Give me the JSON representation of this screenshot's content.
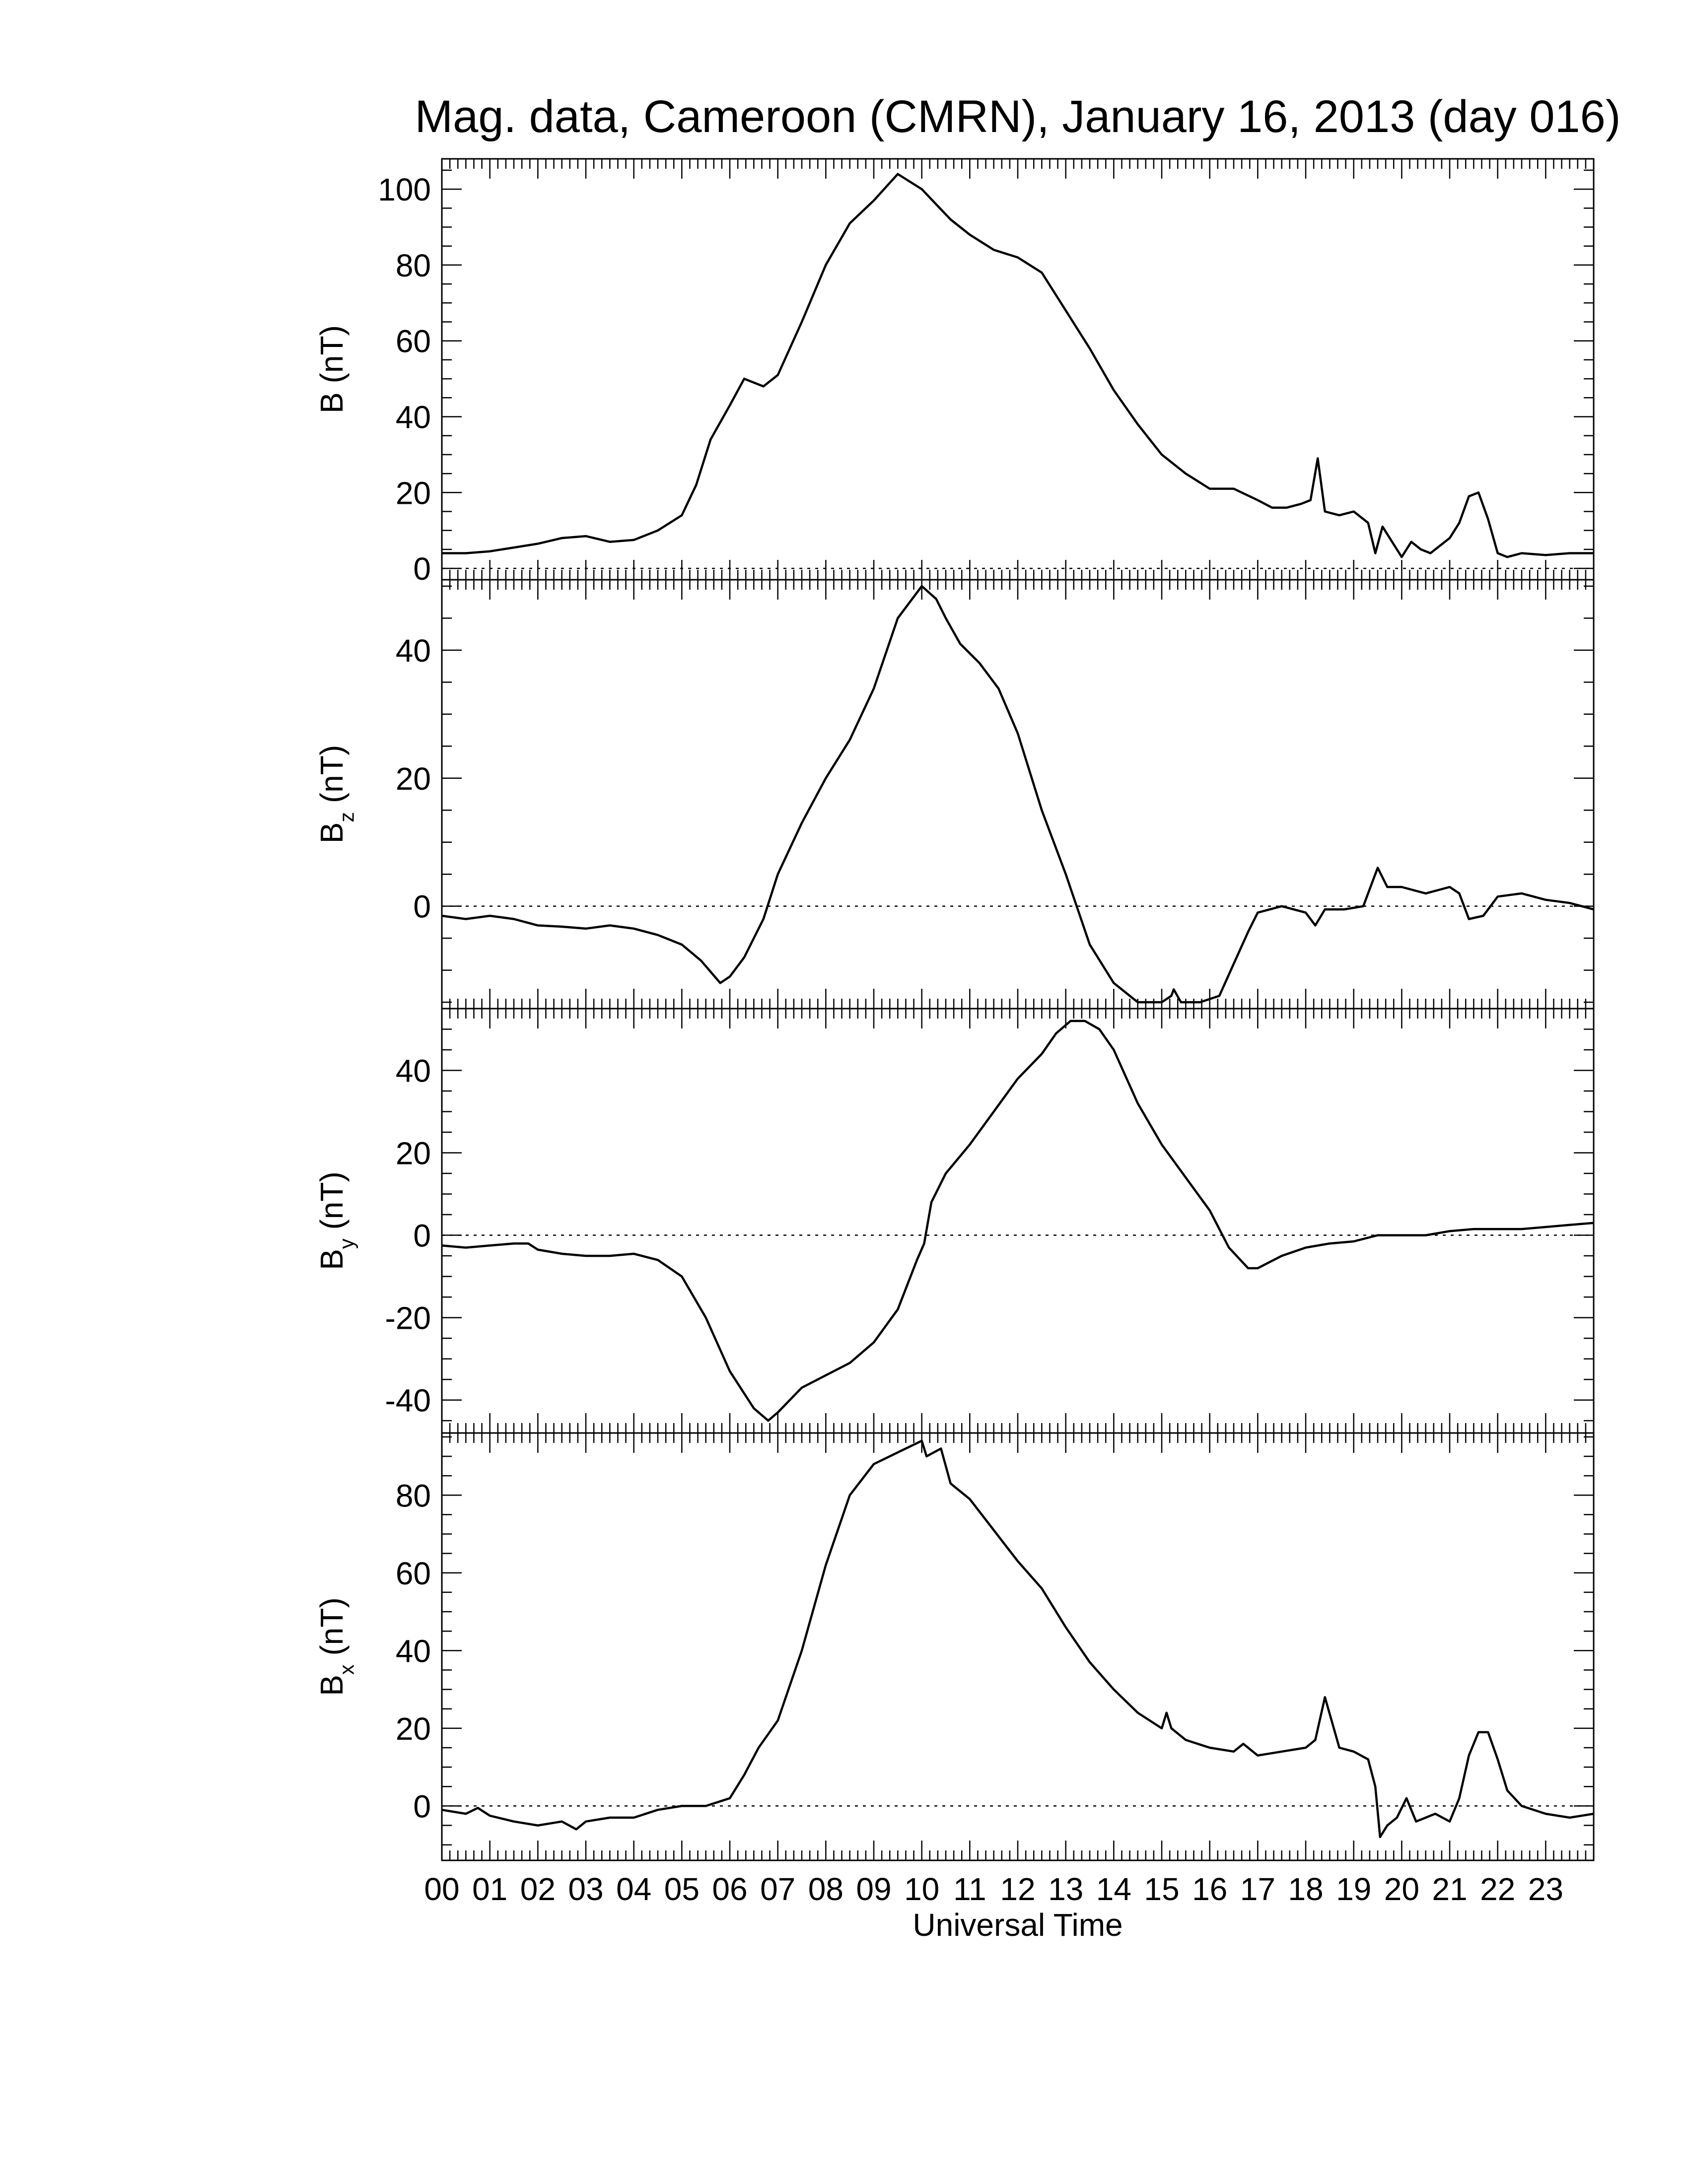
{
  "chart_data": {
    "title": "Mag. data, Cameroon (CMRN), January 16, 2013 (day 016)",
    "xlabel": "Universal Time",
    "x_unit": "hour (UT)",
    "xlim": [
      0,
      24
    ],
    "x_ticks": [
      0,
      1,
      2,
      3,
      4,
      5,
      6,
      7,
      8,
      9,
      10,
      11,
      12,
      13,
      14,
      15,
      16,
      17,
      18,
      19,
      20,
      21,
      22,
      23
    ],
    "x_tick_labels": [
      "00",
      "01",
      "02",
      "03",
      "04",
      "05",
      "06",
      "07",
      "08",
      "09",
      "10",
      "11",
      "12",
      "13",
      "14",
      "15",
      "16",
      "17",
      "18",
      "19",
      "20",
      "21",
      "22",
      "23"
    ],
    "panels": [
      {
        "type": "line",
        "ylabel_main": "B",
        "ylabel_sub": "",
        "ylabel_unit": " (nT)",
        "ylim": [
          -3,
          108
        ],
        "yticks": [
          0,
          20,
          40,
          60,
          80,
          100
        ],
        "ytick_labels": [
          "0",
          "20",
          "40",
          "60",
          "80",
          "100"
        ],
        "zero_line": true,
        "series": [
          {
            "x": [
              0,
              0.5,
              1,
              1.5,
              2,
              2.5,
              3,
              3.5,
              4,
              4.5,
              5,
              5.3,
              5.6,
              6,
              6.3,
              6.7,
              7,
              7.5,
              8,
              8.5,
              9,
              9.5,
              10,
              10.3,
              10.6,
              11,
              11.5,
              12,
              12.5,
              13,
              13.5,
              14,
              14.5,
              15,
              15.5,
              16,
              16.5,
              17,
              17.3,
              17.6,
              17.9,
              18.1,
              18.25,
              18.4,
              18.7,
              19,
              19.3,
              19.45,
              19.6,
              19.8,
              20,
              20.2,
              20.4,
              20.6,
              20.8,
              21,
              21.2,
              21.4,
              21.6,
              21.8,
              22,
              22.2,
              22.5,
              23,
              23.5,
              24
            ],
            "y": [
              4,
              4,
              4.5,
              5.5,
              6.5,
              8,
              8.5,
              7,
              7.5,
              10,
              14,
              22,
              34,
              43,
              50,
              48,
              51,
              65,
              80,
              91,
              97,
              104,
              100,
              96,
              92,
              88,
              84,
              82,
              78,
              68,
              58,
              47,
              38,
              30,
              25,
              21,
              21,
              18,
              16,
              16,
              17,
              18,
              29,
              15,
              14,
              15,
              12,
              4,
              11,
              7,
              3,
              7,
              5,
              4,
              6,
              8,
              12,
              19,
              20,
              13,
              4,
              3,
              4,
              3.5,
              4,
              4
            ]
          }
        ]
      },
      {
        "type": "line",
        "ylabel_main": "B",
        "ylabel_sub": "z",
        "ylabel_unit": " (nT)",
        "ylim": [
          -16,
          51
        ],
        "yticks": [
          0,
          20,
          40
        ],
        "ytick_labels": [
          "0",
          "20",
          "40"
        ],
        "zero_line": true,
        "series": [
          {
            "x": [
              0,
              0.5,
              1,
              1.5,
              2,
              2.5,
              3,
              3.5,
              4,
              4.5,
              5,
              5.4,
              5.8,
              6,
              6.3,
              6.7,
              7,
              7.5,
              8,
              8.5,
              9,
              9.5,
              10,
              10.3,
              10.5,
              10.8,
              11.2,
              11.6,
              12,
              12.5,
              13,
              13.5,
              14,
              14.5,
              15,
              15.2,
              15.25,
              15.4,
              15.8,
              16.2,
              16.5,
              16.8,
              17,
              17.5,
              18,
              18.2,
              18.4,
              18.8,
              19.2,
              19.4,
              19.5,
              19.7,
              20,
              20.5,
              21,
              21.2,
              21.4,
              21.7,
              22,
              22.5,
              23,
              23.5,
              24
            ],
            "y": [
              -1.5,
              -2,
              -1.5,
              -2,
              -3,
              -3.2,
              -3.5,
              -3,
              -3.5,
              -4.5,
              -6,
              -8.5,
              -12,
              -11,
              -8,
              -2,
              5,
              13,
              20,
              26,
              34,
              45,
              50,
              48,
              45,
              41,
              38,
              34,
              27,
              15,
              5,
              -6,
              -12,
              -15,
              -15,
              -14,
              -13,
              -15,
              -15,
              -14,
              -9,
              -4,
              -1,
              0,
              -1,
              -3,
              -0.5,
              -0.5,
              0,
              4,
              6,
              3,
              3,
              2,
              3,
              2,
              -2,
              -1.5,
              1.5,
              2,
              1,
              0.5,
              -0.5
            ]
          }
        ]
      },
      {
        "type": "line",
        "ylabel_main": "B",
        "ylabel_sub": "y",
        "ylabel_unit": " (nT)",
        "ylim": [
          -48,
          55
        ],
        "yticks": [
          -40,
          -20,
          0,
          20,
          40
        ],
        "ytick_labels": [
          "-40",
          "-20",
          "0",
          "20",
          "40"
        ],
        "zero_line": true,
        "series": [
          {
            "x": [
              0,
              0.5,
              1,
              1.5,
              1.8,
              2,
              2.5,
              3,
              3.5,
              4,
              4.5,
              5,
              5.5,
              6,
              6.5,
              6.8,
              7,
              7.5,
              8,
              8.5,
              9,
              9.5,
              9.9,
              10.05,
              10.2,
              10.5,
              11,
              11.5,
              12,
              12.5,
              12.8,
              13.1,
              13.4,
              13.7,
              14,
              14.5,
              15,
              15.5,
              16,
              16.4,
              16.8,
              17,
              17.5,
              18,
              18.5,
              19,
              19.5,
              20,
              20.5,
              21,
              21.5,
              22,
              22.5,
              23,
              23.5,
              24
            ],
            "y": [
              -2.5,
              -3,
              -2.5,
              -2,
              -2,
              -3.5,
              -4.5,
              -5,
              -5,
              -4.5,
              -6,
              -10,
              -20,
              -33,
              -42,
              -45,
              -43,
              -37,
              -34,
              -31,
              -26,
              -18,
              -6,
              -2,
              8,
              15,
              22,
              30,
              38,
              44,
              49,
              52,
              52,
              50,
              45,
              32,
              22,
              14,
              6,
              -3,
              -8,
              -8,
              -5,
              -3,
              -2,
              -1.5,
              0,
              0,
              0,
              1,
              1.5,
              1.5,
              1.5,
              2,
              2.5,
              3
            ]
          }
        ]
      },
      {
        "type": "line",
        "ylabel_main": "B",
        "ylabel_sub": "x",
        "ylabel_unit": " (nT)",
        "ylim": [
          -14,
          96
        ],
        "yticks": [
          0,
          20,
          40,
          60,
          80
        ],
        "ytick_labels": [
          "0",
          "20",
          "40",
          "60",
          "80"
        ],
        "zero_line": true,
        "series": [
          {
            "x": [
              0,
              0.5,
              0.75,
              1,
              1.5,
              2,
              2.5,
              2.8,
              3,
              3.5,
              4,
              4.5,
              5,
              5.5,
              6,
              6.3,
              6.6,
              7,
              7.5,
              8,
              8.5,
              9,
              9.5,
              10,
              10.1,
              10.4,
              10.6,
              11,
              11.5,
              12,
              12.5,
              13,
              13.5,
              14,
              14.5,
              15,
              15.1,
              15.2,
              15.5,
              16,
              16.5,
              16.7,
              17,
              17.5,
              18,
              18.2,
              18.4,
              18.7,
              19,
              19.3,
              19.45,
              19.55,
              19.7,
              19.9,
              20.1,
              20.3,
              20.5,
              20.7,
              21,
              21.2,
              21.4,
              21.6,
              21.8,
              22,
              22.2,
              22.5,
              23,
              23.5,
              24
            ],
            "y": [
              -1,
              -2,
              -0.5,
              -2.5,
              -4,
              -5,
              -4,
              -6,
              -4,
              -3,
              -3,
              -1,
              0,
              0,
              2,
              8,
              15,
              22,
              40,
              62,
              80,
              88,
              91,
              94,
              90,
              92,
              83,
              79,
              71,
              63,
              56,
              46,
              37,
              30,
              24,
              20,
              24,
              20,
              17,
              15,
              14,
              16,
              13,
              14,
              15,
              17,
              28,
              15,
              14,
              12,
              5,
              -8,
              -5,
              -3,
              2,
              -4,
              -3,
              -2,
              -4,
              2,
              13,
              19,
              19,
              12,
              4,
              0,
              -2,
              -3,
              -2
            ]
          }
        ]
      }
    ]
  }
}
